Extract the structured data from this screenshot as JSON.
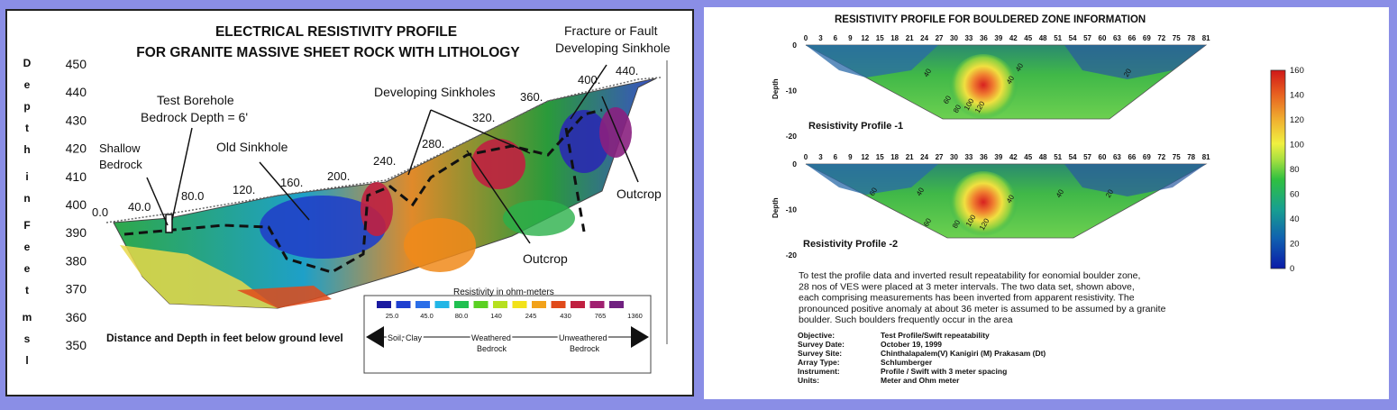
{
  "left": {
    "title1": "ELECTRICAL RESISTIVITY PROFILE",
    "title2": "FOR GRANITE MASSIVE SHEET ROCK WITH LITHOLOGY",
    "ylabel_chars": [
      "D",
      "e",
      "p",
      "t",
      "h",
      "i",
      "n",
      "F",
      "e",
      "e",
      "t",
      "m",
      "s",
      "l"
    ],
    "yticks": [
      "450",
      "440",
      "430",
      "420",
      "410",
      "400",
      "390",
      "380",
      "370",
      "360",
      "350"
    ],
    "xlabel": "Distance and Depth in feet below ground level",
    "surface_labels": [
      "0.0",
      "40.0",
      "80.0",
      "120.",
      "160.",
      "200.",
      "240.",
      "280.",
      "320.",
      "360.",
      "400.",
      "440."
    ],
    "annotations": {
      "shallow1": "Shallow",
      "shallow2": "Bedrock",
      "borehole1": "Test Borehole",
      "borehole2": "Bedrock Depth = 6'",
      "old_sinkhole": "Old Sinkhole",
      "developing": "Developing Sinkholes",
      "fault1": "Fracture or Fault",
      "fault2": "Developing Sinkhole",
      "outcrop1": "Outcrop",
      "outcrop2": "Outcrop"
    },
    "legend": {
      "title": "Resistivity in ohm-meters",
      "values": [
        "25.0",
        "45.0",
        "80.0",
        "140",
        "245",
        "430",
        "765",
        "1360"
      ],
      "colors": [
        "#1a1aa0",
        "#1e3fd0",
        "#2a6ee8",
        "#22b6e6",
        "#20c050",
        "#5ad022",
        "#b6e020",
        "#f2e21a",
        "#f2a21a",
        "#e04a1a",
        "#c02040",
        "#a02070",
        "#702080"
      ],
      "soil": "Soil, Clay",
      "weathered1": "Weathered",
      "weathered2": "Bedrock",
      "unweathered1": "Unweathered",
      "unweathered2": "Bedrock"
    }
  },
  "right": {
    "title": "RESISTIVITY PROFILE FOR BOULDERED ZONE INFORMATION",
    "profile1": "Resistivity Profile  -1",
    "profile2": "Resistivity Profile  -2",
    "ylabel": "Depth",
    "xticks": [
      "0",
      "3",
      "6",
      "9",
      "12",
      "15",
      "18",
      "21",
      "24",
      "27",
      "30",
      "33",
      "36",
      "39",
      "42",
      "45",
      "48",
      "51",
      "54",
      "57",
      "60",
      "63",
      "66",
      "69",
      "72",
      "75",
      "78",
      "81"
    ],
    "yticks": [
      "0",
      "-10",
      "-20"
    ],
    "colorbar_ticks": [
      "160",
      "140",
      "120",
      "100",
      "80",
      "60",
      "40",
      "20",
      "0"
    ],
    "contours1": [
      "40",
      "60",
      "80",
      "100",
      "120",
      "40",
      "40",
      "20"
    ],
    "contours2": [
      "60",
      "40",
      "60",
      "80",
      "100",
      "120",
      "40",
      "40",
      "20"
    ],
    "description": [
      "To test the profile data  and inverted result   repeatability for eonomial boulder zone,",
      "28 nos of  VES were placed at 3 meter intervals.      The two data set,  shown above,",
      "each comprising measurements has been inverted from  apparent resistivity.      The",
      "pronounced positive anomaly at about 36 meter is assumed to be assumed by a granite",
      "boulder. Such boulders frequently occur in the area"
    ],
    "info": [
      {
        "label": "Objective:",
        "value": "Test Profile/Swift repeatability"
      },
      {
        "label": "Survey Date:",
        "value": "October 19, 1999"
      },
      {
        "label": "Survey Site:",
        "value": "Chinthalapalem(V) Kanigiri (M) Prakasam (Dt)"
      },
      {
        "label": "Array Type:",
        "value": "Schlumberger"
      },
      {
        "label": "Instrument:",
        "value": " Profile / Swift  with 3 meter spacing"
      },
      {
        "label": "Units:",
        "value": " Meter and Ohm meter"
      }
    ]
  },
  "chart_data": [
    {
      "type": "heatmap",
      "title": "ELECTRICAL RESISTIVITY PROFILE FOR GRANITE MASSIVE SHEET ROCK WITH LITHOLOGY",
      "xlabel": "Distance and Depth in feet below ground level",
      "ylabel": "Depth in Feet msl",
      "ylim": [
        350,
        450
      ],
      "x_surface_labels": [
        0,
        40,
        80,
        120,
        160,
        200,
        240,
        280,
        320,
        360,
        400,
        440
      ],
      "legend_levels_ohm_m": [
        25,
        45,
        80,
        140,
        245,
        430,
        765,
        1360
      ],
      "legend_classes": [
        "Soil, Clay",
        "Weathered Bedrock",
        "Unweathered Bedrock"
      ]
    },
    {
      "type": "heatmap",
      "title": "RESISTIVITY PROFILE FOR BOULDERED ZONE INFORMATION",
      "series": [
        {
          "name": "Resistivity Profile  -1"
        },
        {
          "name": "Resistivity Profile  -2"
        }
      ],
      "x": [
        0,
        3,
        6,
        9,
        12,
        15,
        18,
        21,
        24,
        27,
        30,
        33,
        36,
        39,
        42,
        45,
        48,
        51,
        54,
        57,
        60,
        63,
        66,
        69,
        72,
        75,
        78,
        81
      ],
      "ylabel": "Depth",
      "ylim": [
        -20,
        0
      ],
      "colorbar_range": [
        0,
        160
      ],
      "anomaly_x": 36
    }
  ]
}
